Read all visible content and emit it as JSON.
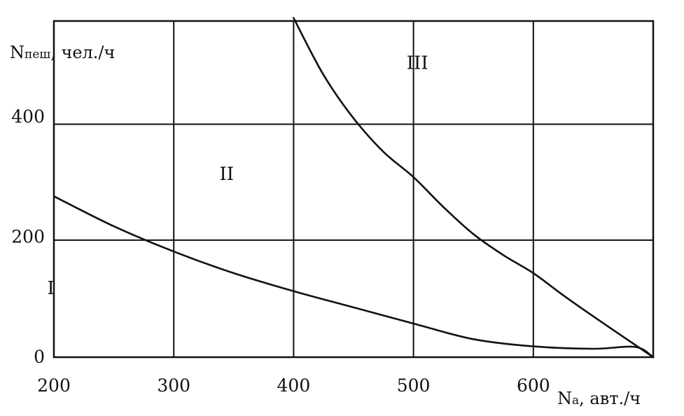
{
  "chart_data": {
    "type": "line",
    "title": "",
    "xlabel": {
      "main": "N",
      "sub": "а",
      "rest": ", авт./ч"
    },
    "ylabel": {
      "main": "N",
      "sub": "пеш",
      "rest": ", чел./ч"
    },
    "xlim": [
      200,
      700
    ],
    "ylim": [
      0,
      560
    ],
    "x_ticks": [
      200,
      300,
      400,
      500,
      600
    ],
    "x_tick_labels": [
      "200",
      "300",
      "400",
      "500",
      "600"
    ],
    "y_ticks": [
      0,
      200,
      400
    ],
    "y_tick_labels": [
      "0",
      "200",
      "400"
    ],
    "x_grid": [
      300,
      400,
      500,
      600
    ],
    "y_grid": [
      195,
      388
    ],
    "grid": true,
    "regions": [
      {
        "label": "I",
        "x": 250,
        "y": 105
      },
      {
        "label": "II",
        "x": 350,
        "y": 295
      },
      {
        "label": "III",
        "x": 550,
        "y": 480
      }
    ],
    "series": [
      {
        "values": [
          {
            "x": 200,
            "y": 268
          },
          {
            "x": 250,
            "y": 218
          },
          {
            "x": 300,
            "y": 176
          },
          {
            "x": 350,
            "y": 140
          },
          {
            "x": 400,
            "y": 110
          },
          {
            "x": 450,
            "y": 83
          },
          {
            "x": 500,
            "y": 56
          },
          {
            "x": 550,
            "y": 30
          },
          {
            "x": 600,
            "y": 18
          },
          {
            "x": 650,
            "y": 14
          },
          {
            "x": 685,
            "y": 17
          },
          {
            "x": 700,
            "y": 0
          }
        ]
      },
      {
        "values": [
          {
            "x": 400,
            "y": 565
          },
          {
            "x": 425,
            "y": 470
          },
          {
            "x": 450,
            "y": 398
          },
          {
            "x": 475,
            "y": 342
          },
          {
            "x": 500,
            "y": 300
          },
          {
            "x": 525,
            "y": 250
          },
          {
            "x": 550,
            "y": 205
          },
          {
            "x": 575,
            "y": 170
          },
          {
            "x": 600,
            "y": 140
          },
          {
            "x": 625,
            "y": 103
          },
          {
            "x": 650,
            "y": 68
          },
          {
            "x": 675,
            "y": 34
          },
          {
            "x": 700,
            "y": 0
          }
        ]
      }
    ]
  }
}
